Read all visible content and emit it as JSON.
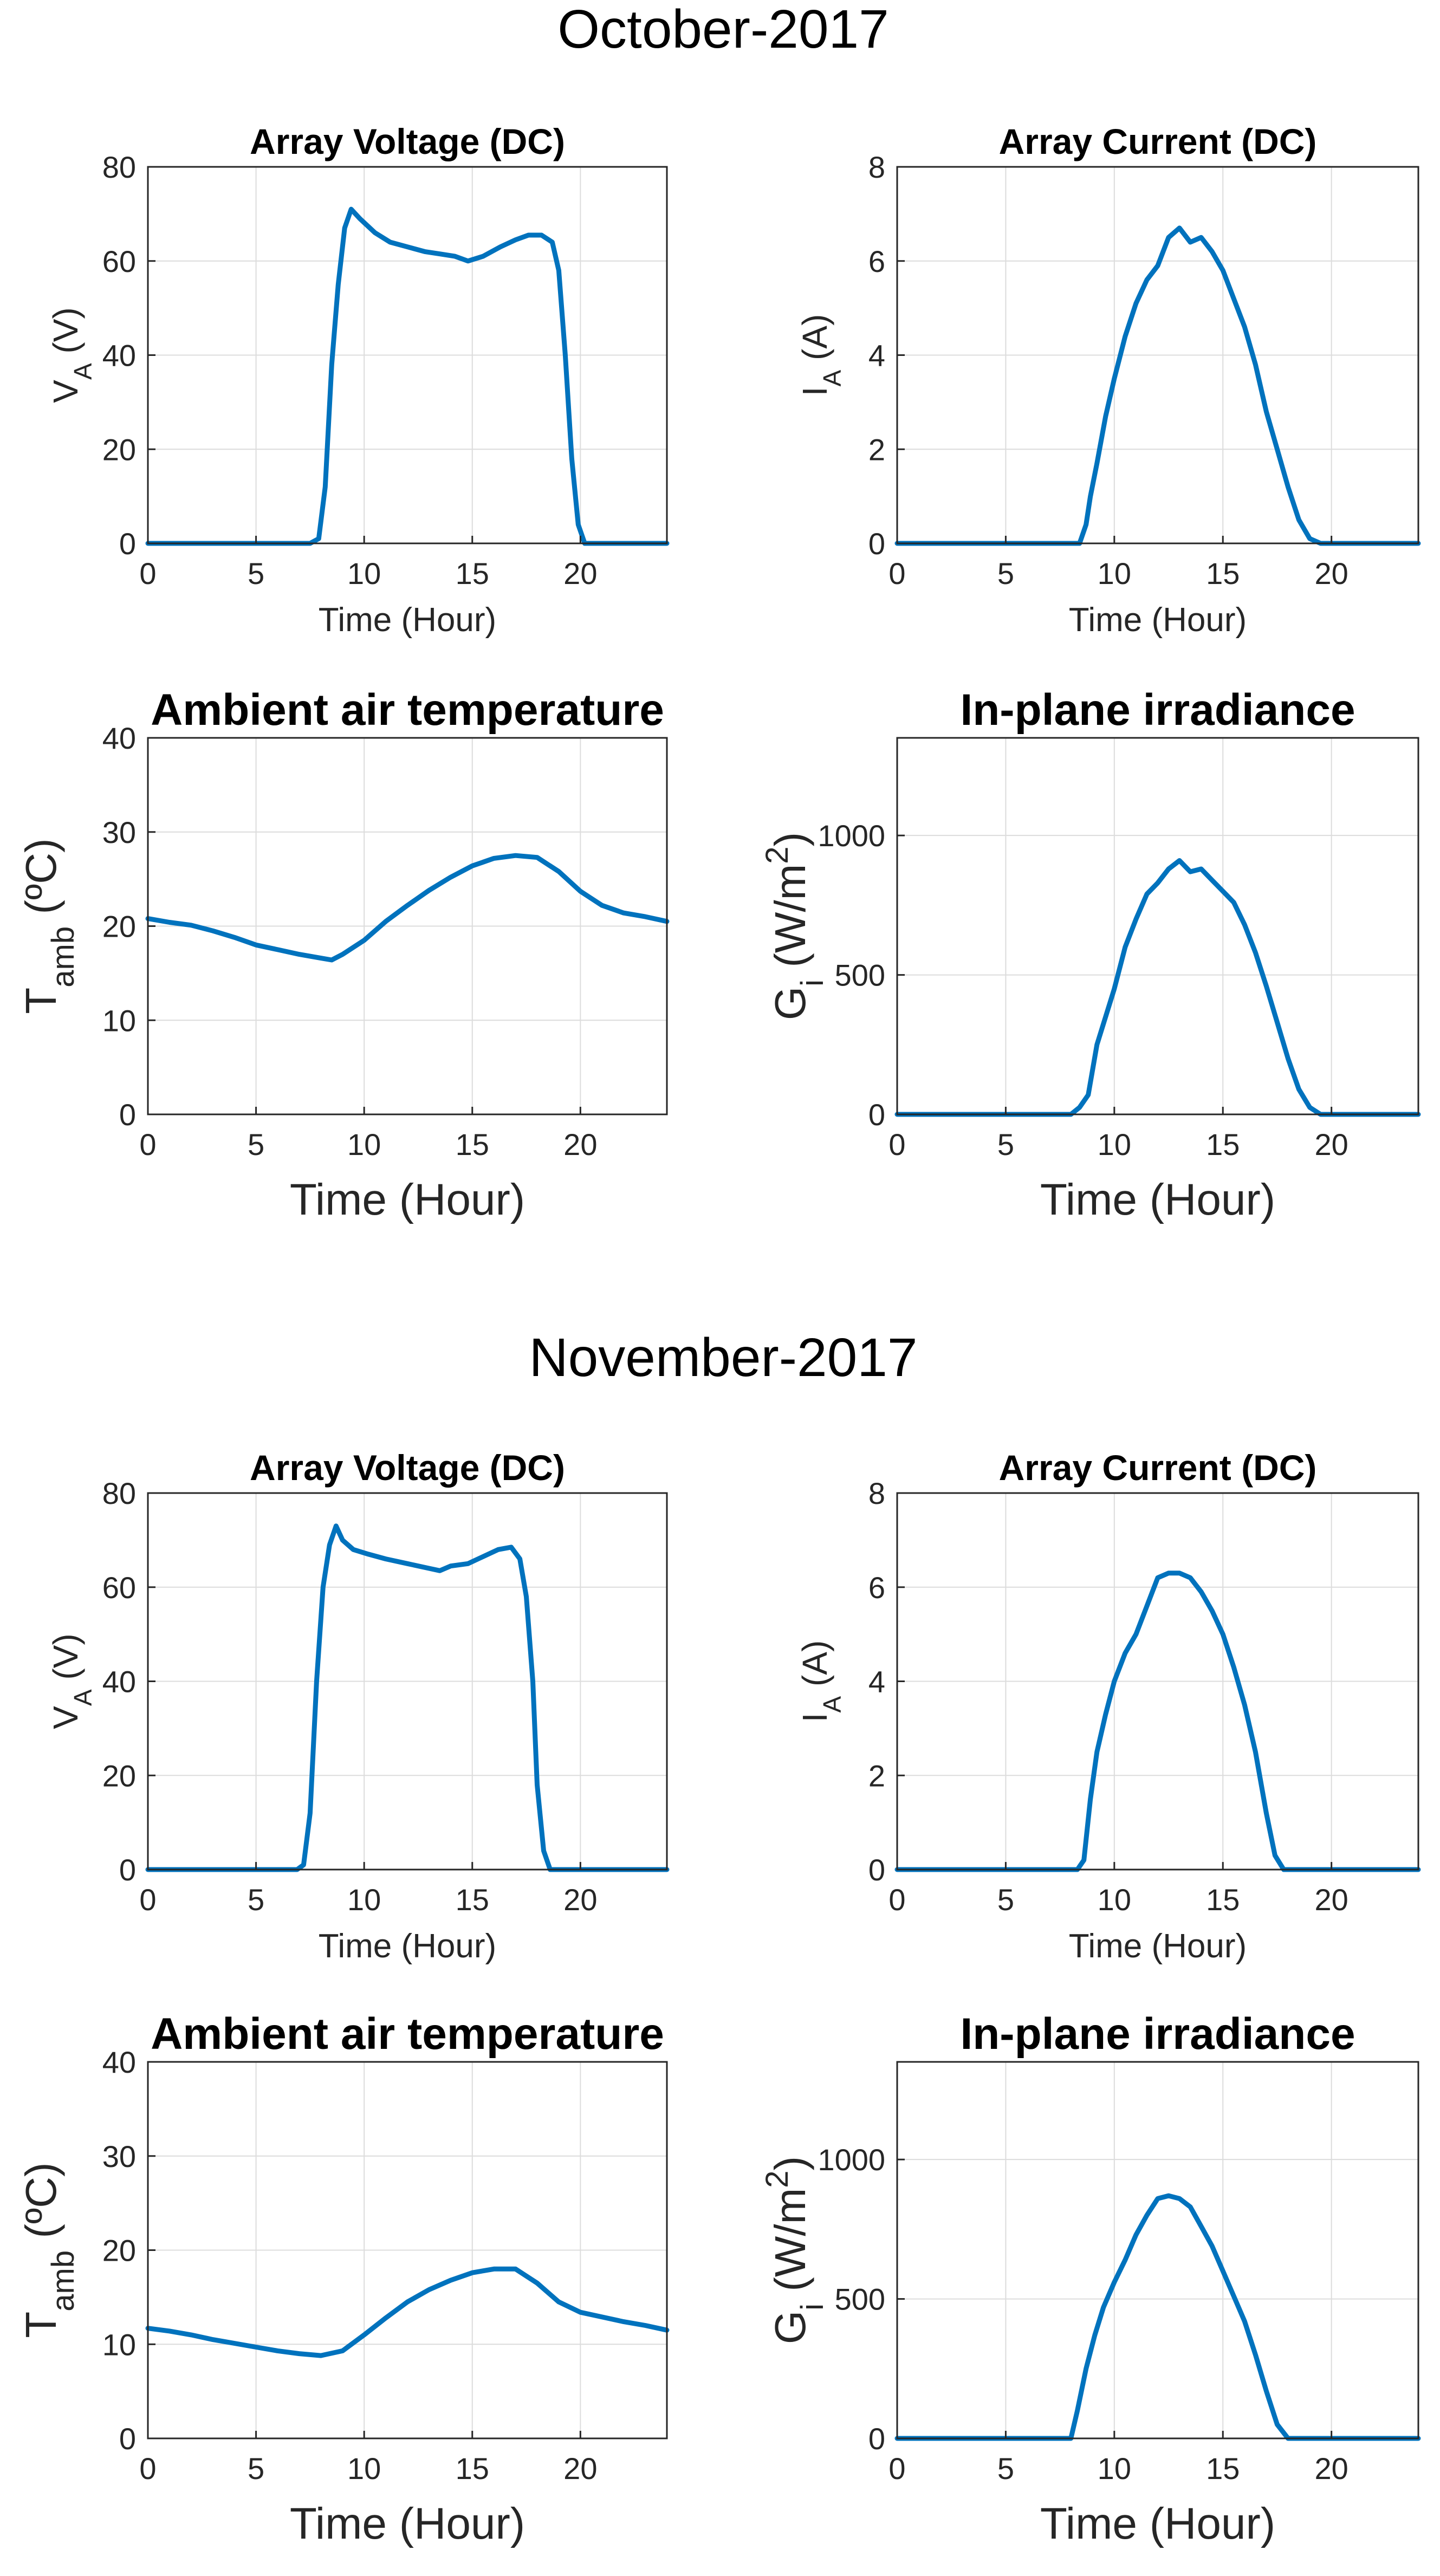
{
  "figure": {
    "groups": [
      {
        "title": "October-2017",
        "panels": [
          {
            "type": "line",
            "title": "Array Voltage (DC)",
            "xlabel": "Time (Hour)",
            "ylabel": "V",
            "ylabel_sub": "A",
            "ylabel_unit": " (V)",
            "xlim": [
              0,
              24
            ],
            "ylim": [
              0,
              80
            ],
            "xticks": [
              0,
              5,
              10,
              15,
              20
            ],
            "yticks": [
              0,
              20,
              40,
              60,
              80
            ],
            "series": [
              {
                "name": "V_A",
                "x": [
                  0,
                  7.5,
                  7.9,
                  8.2,
                  8.5,
                  8.8,
                  9.1,
                  9.4,
                  9.8,
                  10.5,
                  11.2,
                  12.0,
                  12.8,
                  13.5,
                  14.2,
                  14.8,
                  15.5,
                  16.3,
                  17.0,
                  17.6,
                  18.2,
                  18.7,
                  19.0,
                  19.3,
                  19.6,
                  19.9,
                  20.2,
                  20.6,
                  24
                ],
                "y": [
                  0,
                  0,
                  1,
                  12,
                  38,
                  55,
                  67,
                  71,
                  69,
                  66,
                  64,
                  63,
                  62,
                  61.5,
                  61,
                  60,
                  61,
                  63,
                  64.5,
                  65.5,
                  65.5,
                  64,
                  58,
                  40,
                  18,
                  4,
                  0,
                  0,
                  0
                ]
              }
            ]
          },
          {
            "type": "line",
            "title": "Array Current (DC)",
            "xlabel": "Time (Hour)",
            "ylabel": "I",
            "ylabel_sub": "A",
            "ylabel_unit": " (A)",
            "xlim": [
              0,
              24
            ],
            "ylim": [
              0,
              8
            ],
            "xticks": [
              0,
              5,
              10,
              15,
              20
            ],
            "yticks": [
              0,
              2,
              4,
              6,
              8
            ],
            "series": [
              {
                "name": "I_A",
                "x": [
                  0,
                  8.4,
                  8.7,
                  8.9,
                  9.2,
                  9.6,
                  10.0,
                  10.5,
                  11.0,
                  11.5,
                  12.0,
                  12.5,
                  13.0,
                  13.5,
                  14.0,
                  14.5,
                  15.0,
                  15.5,
                  16.0,
                  16.5,
                  17.0,
                  17.5,
                  18.0,
                  18.5,
                  19.0,
                  19.5,
                  24
                ],
                "y": [
                  0,
                  0,
                  0.4,
                  1.0,
                  1.7,
                  2.7,
                  3.5,
                  4.4,
                  5.1,
                  5.6,
                  5.9,
                  6.5,
                  6.7,
                  6.4,
                  6.5,
                  6.2,
                  5.8,
                  5.2,
                  4.6,
                  3.8,
                  2.8,
                  2.0,
                  1.2,
                  0.5,
                  0.1,
                  0,
                  0
                ]
              }
            ]
          },
          {
            "type": "line",
            "title": "Ambient air temperature",
            "xlabel": "Time (Hour)",
            "ylabel": "T",
            "ylabel_sub": "amb",
            "ylabel_unit": " (ºC)",
            "xlim": [
              0,
              24
            ],
            "ylim": [
              0,
              40
            ],
            "xticks": [
              0,
              5,
              10,
              15,
              20
            ],
            "yticks": [
              0,
              10,
              20,
              30,
              40
            ],
            "series": [
              {
                "name": "T_amb",
                "x": [
                  0,
                  1,
                  2,
                  3,
                  4,
                  5,
                  6,
                  7,
                  8,
                  8.5,
                  9,
                  10,
                  11,
                  12,
                  13,
                  14,
                  15,
                  16,
                  17,
                  18,
                  19,
                  20,
                  21,
                  22,
                  23,
                  24
                ],
                "y": [
                  20.8,
                  20.4,
                  20.1,
                  19.5,
                  18.8,
                  18.0,
                  17.5,
                  17.0,
                  16.6,
                  16.4,
                  17.0,
                  18.5,
                  20.5,
                  22.2,
                  23.8,
                  25.2,
                  26.4,
                  27.2,
                  27.5,
                  27.3,
                  25.8,
                  23.7,
                  22.2,
                  21.4,
                  21.0,
                  20.5
                ]
              }
            ]
          },
          {
            "type": "line",
            "title": "In-plane irradiance",
            "xlabel": "Time (Hour)",
            "ylabel": "G",
            "ylabel_sub": "i",
            "ylabel_unit": " (W/m",
            "ylabel_sup": "2",
            "ylabel_close": ")",
            "xlim": [
              0,
              24
            ],
            "ylim": [
              0,
              1350
            ],
            "xticks": [
              0,
              5,
              10,
              15,
              20
            ],
            "yticks": [
              0,
              500,
              1000
            ],
            "series": [
              {
                "name": "G_i",
                "x": [
                  0,
                  8.0,
                  8.4,
                  8.8,
                  9.2,
                  9.6,
                  10.0,
                  10.5,
                  11.0,
                  11.5,
                  12.0,
                  12.5,
                  13.0,
                  13.5,
                  14.0,
                  14.5,
                  15.0,
                  15.5,
                  16.0,
                  16.5,
                  17.0,
                  17.5,
                  18.0,
                  18.5,
                  19.0,
                  19.5,
                  24
                ],
                "y": [
                  0,
                  0,
                  25,
                  70,
                  250,
                  350,
                  450,
                  600,
                  700,
                  790,
                  830,
                  880,
                  910,
                  870,
                  880,
                  840,
                  800,
                  760,
                  680,
                  580,
                  460,
                  330,
                  200,
                  90,
                  25,
                  0,
                  0
                ]
              }
            ]
          }
        ]
      },
      {
        "title": "November-2017",
        "panels": [
          {
            "type": "line",
            "title": "Array Voltage (DC)",
            "xlabel": "Time (Hour)",
            "ylabel": "V",
            "ylabel_sub": "A",
            "ylabel_unit": " (V)",
            "xlim": [
              0,
              24
            ],
            "ylim": [
              0,
              80
            ],
            "xticks": [
              0,
              5,
              10,
              15,
              20
            ],
            "yticks": [
              0,
              20,
              40,
              60,
              80
            ],
            "series": [
              {
                "name": "V_A",
                "x": [
                  0,
                  6.9,
                  7.2,
                  7.5,
                  7.8,
                  8.1,
                  8.4,
                  8.7,
                  9.0,
                  9.5,
                  10.2,
                  11.0,
                  12.0,
                  13.0,
                  13.5,
                  14.0,
                  14.8,
                  15.5,
                  16.2,
                  16.8,
                  17.2,
                  17.5,
                  17.8,
                  18.0,
                  18.3,
                  18.6,
                  19.0,
                  24
                ],
                "y": [
                  0,
                  0,
                  1,
                  12,
                  40,
                  60,
                  69,
                  73,
                  70,
                  68,
                  67,
                  66,
                  65,
                  64,
                  63.5,
                  64.5,
                  65,
                  66.5,
                  68,
                  68.5,
                  66,
                  58,
                  40,
                  18,
                  4,
                  0,
                  0,
                  0
                ]
              }
            ]
          },
          {
            "type": "line",
            "title": "Array Current (DC)",
            "xlabel": "Time (Hour)",
            "ylabel": "I",
            "ylabel_sub": "A",
            "ylabel_unit": " (A)",
            "xlim": [
              0,
              24
            ],
            "ylim": [
              0,
              8
            ],
            "xticks": [
              0,
              5,
              10,
              15,
              20
            ],
            "yticks": [
              0,
              2,
              4,
              6,
              8
            ],
            "series": [
              {
                "name": "I_A",
                "x": [
                  0,
                  8.3,
                  8.6,
                  8.9,
                  9.2,
                  9.6,
                  10.0,
                  10.5,
                  11.0,
                  11.5,
                  12.0,
                  12.5,
                  13.0,
                  13.5,
                  14.0,
                  14.5,
                  15.0,
                  15.5,
                  16.0,
                  16.5,
                  17.0,
                  17.4,
                  17.8,
                  24
                ],
                "y": [
                  0,
                  0,
                  0.2,
                  1.5,
                  2.5,
                  3.3,
                  4.0,
                  4.6,
                  5.0,
                  5.6,
                  6.2,
                  6.3,
                  6.3,
                  6.2,
                  5.9,
                  5.5,
                  5.0,
                  4.3,
                  3.5,
                  2.5,
                  1.2,
                  0.3,
                  0,
                  0
                ]
              }
            ]
          },
          {
            "type": "line",
            "title": "Ambient air temperature",
            "xlabel": "Time (Hour)",
            "ylabel": "T",
            "ylabel_sub": "amb",
            "ylabel_unit": " (ºC)",
            "xlim": [
              0,
              24
            ],
            "ylim": [
              0,
              40
            ],
            "xticks": [
              0,
              5,
              10,
              15,
              20
            ],
            "yticks": [
              0,
              10,
              20,
              30,
              40
            ],
            "series": [
              {
                "name": "T_amb",
                "x": [
                  0,
                  1,
                  2,
                  3,
                  4,
                  5,
                  6,
                  7,
                  8,
                  9,
                  10,
                  11,
                  12,
                  13,
                  14,
                  15,
                  16,
                  17,
                  18,
                  19,
                  20,
                  21,
                  22,
                  23,
                  24
                ],
                "y": [
                  11.7,
                  11.4,
                  11.0,
                  10.5,
                  10.1,
                  9.7,
                  9.3,
                  9.0,
                  8.8,
                  9.3,
                  11.0,
                  12.8,
                  14.5,
                  15.8,
                  16.8,
                  17.6,
                  18.0,
                  18.0,
                  16.5,
                  14.5,
                  13.4,
                  12.9,
                  12.4,
                  12.0,
                  11.5
                ]
              }
            ]
          },
          {
            "type": "line",
            "title": "In-plane irradiance",
            "xlabel": "Time (Hour)",
            "ylabel": "G",
            "ylabel_sub": "i",
            "ylabel_unit": " (W/m",
            "ylabel_sup": "2",
            "ylabel_close": ")",
            "xlim": [
              0,
              24
            ],
            "ylim": [
              0,
              1350
            ],
            "xticks": [
              0,
              5,
              10,
              15,
              20
            ],
            "yticks": [
              0,
              500,
              1000
            ],
            "series": [
              {
                "name": "G_i",
                "x": [
                  0,
                  8.0,
                  8.3,
                  8.7,
                  9.1,
                  9.5,
                  10.0,
                  10.5,
                  11.0,
                  11.5,
                  12.0,
                  12.5,
                  13.0,
                  13.5,
                  14.0,
                  14.5,
                  15.0,
                  15.5,
                  16.0,
                  16.5,
                  17.0,
                  17.5,
                  18.0,
                  24
                ],
                "y": [
                  0,
                  0,
                  100,
                  250,
                  370,
                  470,
                  560,
                  640,
                  730,
                  800,
                  860,
                  870,
                  860,
                  830,
                  760,
                  690,
                  600,
                  510,
                  420,
                  300,
                  170,
                  50,
                  0,
                  0
                ]
              }
            ]
          }
        ]
      }
    ]
  },
  "colors": {
    "line": "#0072BD",
    "grid": "#dcdcdc",
    "axis": "#262626",
    "text": "#000000"
  }
}
